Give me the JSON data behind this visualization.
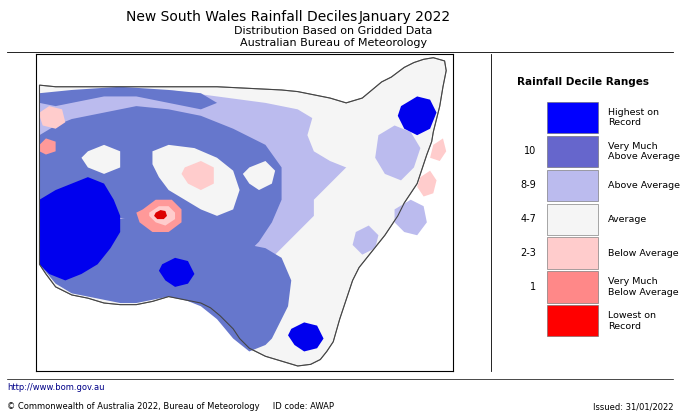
{
  "title_left": "New South Wales Rainfall Deciles",
  "title_right": "January 2022",
  "subtitle1": "Distribution Based on Gridded Data",
  "subtitle2": "Australian Bureau of Meteorology",
  "footer_left": "http://www.bom.gov.au",
  "footer_copy": "© Commonwealth of Australia 2022, Bureau of Meteorology",
  "footer_id": "ID code: AWAP",
  "footer_issued": "Issued: 31/01/2022",
  "legend_title": "Rainfall Decile Ranges",
  "legend_items": [
    {
      "label": "Highest on\nRecord",
      "color": "#0000ff",
      "decile": ""
    },
    {
      "label": "Very Much\nAbove Average",
      "color": "#6666cc",
      "decile": "10"
    },
    {
      "label": "Above Average",
      "color": "#bbbbee",
      "decile": "8-9"
    },
    {
      "label": "Average",
      "color": "#f5f5f5",
      "decile": "4-7"
    },
    {
      "label": "Below Average",
      "color": "#ffcccc",
      "decile": "2-3"
    },
    {
      "label": "Very Much\nBelow Average",
      "color": "#ff8888",
      "decile": "1"
    },
    {
      "label": "Lowest on\nRecord",
      "color": "#ff0000",
      "decile": ""
    }
  ],
  "bg_color": "#ffffff",
  "map_border": "#aaaaaa",
  "leg_border": "#aaaaaa",
  "title_fontsize": 10,
  "subtitle_fontsize": 8,
  "footer_fontsize": 6,
  "legend_fontsize": 7,
  "map_xlim": [
    140.9,
    153.8
  ],
  "map_ylim": [
    -37.8,
    -28.0
  ]
}
